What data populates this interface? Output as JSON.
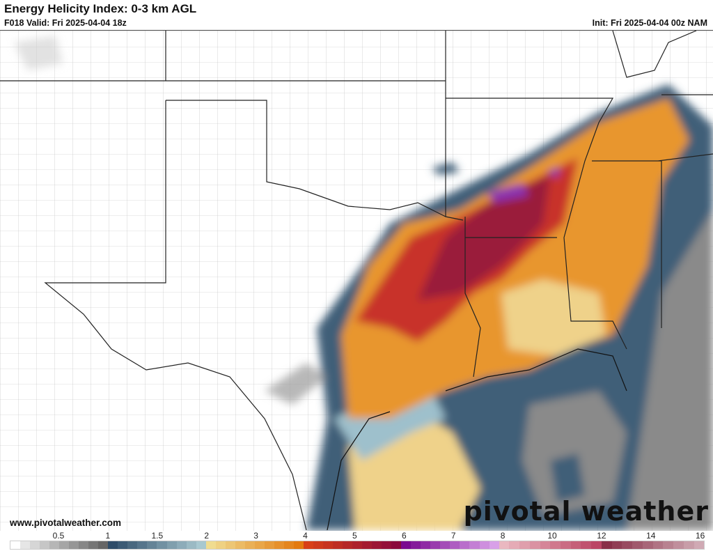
{
  "header": {
    "title": "Energy Helicity Index: 0-3 km AGL",
    "valid": "F018 Valid: Fri 2025-04-04 18z",
    "init": "Init: Fri 2025-04-04 00z NAM"
  },
  "footer": {
    "url": "www.pivotalweather.com",
    "logo": "pivotal weather"
  },
  "colorbar": {
    "ticks": [
      "0.5",
      "1",
      "1.5",
      "2",
      "3",
      "4",
      "5",
      "6",
      "7",
      "8",
      "10",
      "12",
      "14",
      "16"
    ],
    "stops": [
      {
        "v": 0,
        "c": "#ffffff"
      },
      {
        "v": 0.1,
        "c": "#e6e6e6"
      },
      {
        "v": 0.9,
        "c": "#666666"
      },
      {
        "v": 1.0,
        "c": "#2f4c68"
      },
      {
        "v": 1.9,
        "c": "#a8c8d0"
      },
      {
        "v": 2.0,
        "c": "#f0dc90"
      },
      {
        "v": 3.8,
        "c": "#e37a10"
      },
      {
        "v": 4.0,
        "c": "#d84018"
      },
      {
        "v": 5.8,
        "c": "#8a0a3c"
      },
      {
        "v": 6.0,
        "c": "#7a0a90"
      },
      {
        "v": 7.8,
        "c": "#d8a0e8"
      },
      {
        "v": 8.0,
        "c": "#eab8c0"
      },
      {
        "v": 11.8,
        "c": "#b84060"
      },
      {
        "v": 12.0,
        "c": "#883048"
      },
      {
        "v": 16,
        "c": "#d8b8c0"
      }
    ]
  },
  "map_colors": {
    "slate": "#3f5f78",
    "lightblue": "#9ec0cc",
    "yellow": "#efd28a",
    "orange": "#e8962e",
    "red": "#c8302a",
    "maroon": "#9a1a3a",
    "purple": "#8a30b0",
    "gray": "#8a8a8a"
  }
}
